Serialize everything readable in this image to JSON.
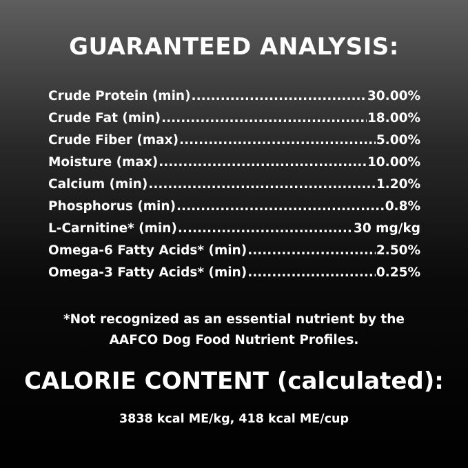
{
  "title": "GUARANTEED ANALYSIS:",
  "rows": [
    {
      "label": "Crude Protein (min)",
      "value": "30.00%"
    },
    {
      "label": "Crude Fat (min)",
      "value": "18.00%"
    },
    {
      "label": "Crude Fiber (max)",
      "value": "5.00%"
    },
    {
      "label": "Moisture (max)",
      "value": "10.00%"
    },
    {
      "label": "Calcium (min)",
      "value": "1.20%"
    },
    {
      "label": "Phosphorus (min)",
      "value": "0.8%"
    },
    {
      "label": "L-Carnitine* (min)",
      "value": "30 mg/kg"
    },
    {
      "label": "Omega-6 Fatty Acids* (min)",
      "value": "2.50%"
    },
    {
      "label": "Omega-3 Fatty Acids* (min)",
      "value": "0.25%"
    }
  ],
  "footnote": {
    "line1": "*Not recognized as an essential nutrient by the",
    "line2": "AAFCO Dog Food Nutrient Profiles."
  },
  "calorie": {
    "heading": "CALORIE CONTENT (calculated):",
    "value": "3838 kcal ME/kg, 418 kcal ME/cup"
  }
}
